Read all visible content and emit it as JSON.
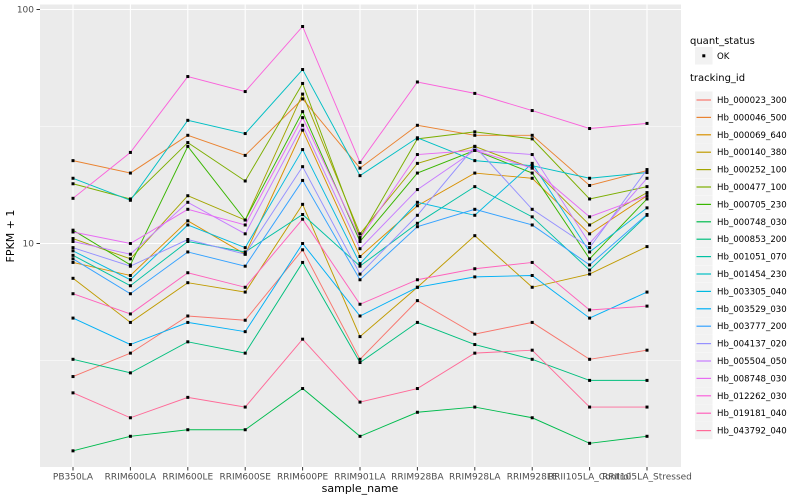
{
  "figure": {
    "background": "#FFFFFF",
    "panel_bg": "#EBEBEB",
    "grid_color": "#FFFFFF",
    "axis_text_color": "#4D4D4D",
    "tick_color": "#333333",
    "point_color": "#000000",
    "legend_key_bg": "#F2F2F2"
  },
  "legend": {
    "quant_status": {
      "title": "quant_status",
      "items": [
        {
          "label": "OK",
          "shape": "point",
          "color": "#000000"
        }
      ]
    },
    "tracking_id": {
      "title": "tracking_id"
    }
  },
  "chart_data": {
    "type": "line",
    "title": "",
    "xlabel": "sample_name",
    "ylabel": "FPKM + 1",
    "y_scale": "log10",
    "ylim": [
      1,
      103
    ],
    "grid": true,
    "legend_position": "right",
    "y_ticks": [
      {
        "label": "100",
        "value": 100
      },
      {
        "label": "10",
        "value": 10
      }
    ],
    "y_minor": [
      3.1623,
      31.6228
    ],
    "categories": [
      "PB350LA",
      "RRIM600LA",
      "RRIM600LE",
      "RRIM600SE",
      "RRIM600PE",
      "RRIM901LA",
      "RRIM928BA",
      "RRIM928LA",
      "RRIM928LE",
      "RRII105LA_Control",
      "RRII105LA_Stressed"
    ],
    "series": [
      {
        "name": "Hb_000023_300",
        "color": "#F8766D",
        "values": [
          2.7,
          3.4,
          4.9,
          4.7,
          9.4,
          3.2,
          5.7,
          4.1,
          4.6,
          3.2,
          3.5
        ]
      },
      {
        "name": "Hb_000046_500",
        "color": "#EA8331",
        "values": [
          22.6,
          20.0,
          29.0,
          23.8,
          41.5,
          21.0,
          32.0,
          29.0,
          29.0,
          17.7,
          20.5
        ]
      },
      {
        "name": "Hb_000069_640",
        "color": "#D89000",
        "values": [
          8.3,
          7.3,
          12.5,
          9.0,
          30.5,
          8.8,
          14.5,
          20.0,
          19.0,
          11.0,
          16.0
        ]
      },
      {
        "name": "Hb_000140_380",
        "color": "#C09B00",
        "values": [
          7.1,
          4.6,
          6.8,
          6.2,
          14.7,
          4.0,
          6.5,
          10.8,
          6.5,
          7.4,
          9.7
        ]
      },
      {
        "name": "Hb_000252_100",
        "color": "#A3A500",
        "values": [
          10.5,
          8.6,
          16.0,
          12.6,
          43.5,
          11.0,
          22.0,
          26.0,
          21.0,
          12.0,
          16.5
        ]
      },
      {
        "name": "Hb_000477_100",
        "color": "#7CAE00",
        "values": [
          18.0,
          15.5,
          27.0,
          18.5,
          48.3,
          10.6,
          28.0,
          30.0,
          28.0,
          15.5,
          17.5
        ]
      },
      {
        "name": "Hb_000705_230",
        "color": "#39B600",
        "values": [
          11.4,
          8.1,
          26.0,
          12.6,
          36.6,
          10.2,
          20.0,
          25.0,
          20.0,
          8.6,
          15.5
        ]
      },
      {
        "name": "Hb_000748_030",
        "color": "#00BB4E",
        "values": [
          1.3,
          1.5,
          1.6,
          1.6,
          2.4,
          1.5,
          1.9,
          2.0,
          1.8,
          1.4,
          1.5
        ]
      },
      {
        "name": "Hb_000853_200",
        "color": "#00BF7D",
        "values": [
          3.2,
          2.8,
          3.8,
          3.4,
          8.3,
          3.1,
          4.6,
          3.7,
          3.2,
          2.6,
          2.6
        ]
      },
      {
        "name": "Hb_001051_070",
        "color": "#00C1A3",
        "values": [
          8.9,
          6.6,
          10.2,
          9.2,
          13.3,
          8.0,
          12.2,
          17.5,
          13.0,
          7.7,
          13.2
        ]
      },
      {
        "name": "Hb_001454_230",
        "color": "#00BFC4",
        "values": [
          19.0,
          15.3,
          33.6,
          29.5,
          55.4,
          19.5,
          28.3,
          22.6,
          21.5,
          19.0,
          20.1
        ]
      },
      {
        "name": "Hb_003305_040",
        "color": "#00BAE0",
        "values": [
          9.3,
          7.0,
          12.0,
          9.6,
          25.2,
          8.2,
          15.0,
          13.2,
          22.0,
          9.2,
          14.2
        ]
      },
      {
        "name": "Hb_003529_030",
        "color": "#00B0F6",
        "values": [
          4.8,
          3.7,
          4.6,
          4.2,
          10.0,
          4.9,
          6.5,
          7.2,
          7.3,
          4.8,
          6.2
        ]
      },
      {
        "name": "Hb_003777_200",
        "color": "#35A2FF",
        "values": [
          8.6,
          6.1,
          9.2,
          8.0,
          18.6,
          7.0,
          11.8,
          14.0,
          12.0,
          8.1,
          13.3
        ]
      },
      {
        "name": "Hb_004137_020",
        "color": "#9590FF",
        "values": [
          9.6,
          8.0,
          10.4,
          9.0,
          21.3,
          7.4,
          13.2,
          26.0,
          14.0,
          9.6,
          20.7
        ]
      },
      {
        "name": "Hb_005504_050",
        "color": "#C77CFF",
        "values": [
          10.2,
          9.0,
          15.0,
          11.0,
          32.0,
          9.5,
          17.0,
          25.0,
          24.0,
          10.0,
          19.0
        ]
      },
      {
        "name": "Hb_008748_030",
        "color": "#E76BF3",
        "values": [
          11.2,
          10.0,
          14.0,
          12.0,
          34.5,
          10.5,
          24.0,
          25.0,
          21.0,
          13.0,
          16.0
        ]
      },
      {
        "name": "Hb_012262_030",
        "color": "#FA62DB",
        "values": [
          15.6,
          24.5,
          51.7,
          44.6,
          84.6,
          22.2,
          49.0,
          43.8,
          37.0,
          31.0,
          32.6
        ]
      },
      {
        "name": "Hb_019181_040",
        "color": "#FF62BC",
        "values": [
          6.1,
          5.0,
          7.5,
          6.5,
          12.7,
          5.5,
          7.0,
          7.8,
          8.3,
          5.2,
          5.4
        ]
      },
      {
        "name": "Hb_043792_040",
        "color": "#FF6A98",
        "values": [
          2.3,
          1.8,
          2.2,
          2.0,
          3.9,
          2.1,
          2.4,
          3.4,
          3.5,
          2.0,
          2.0
        ]
      }
    ]
  }
}
